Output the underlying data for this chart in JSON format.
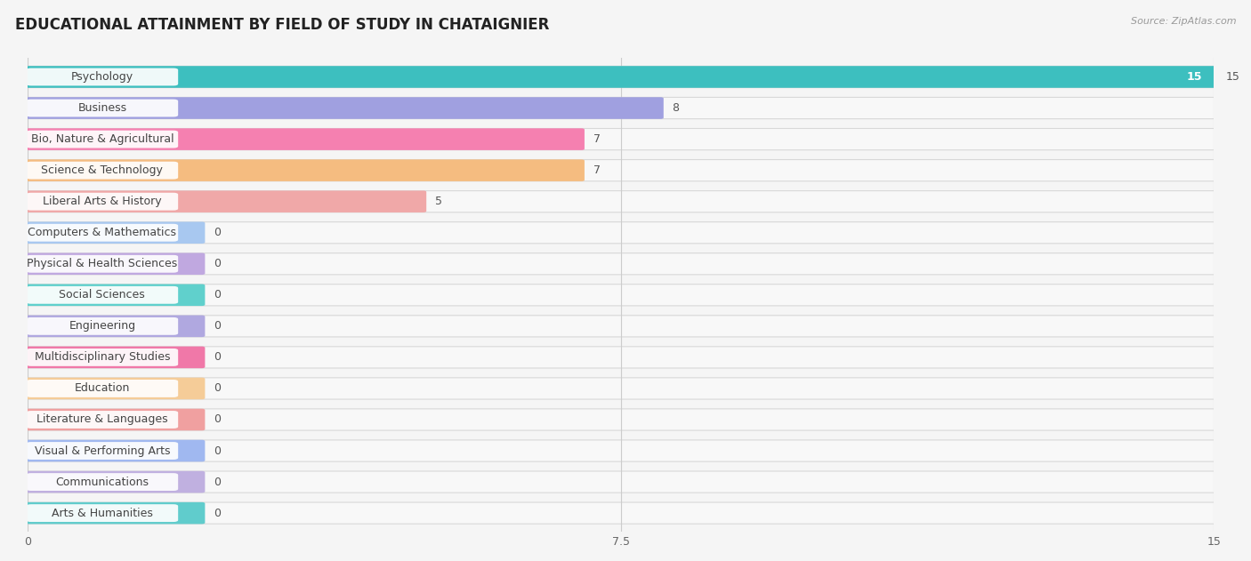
{
  "title": "EDUCATIONAL ATTAINMENT BY FIELD OF STUDY IN CHATAIGNIER",
  "source": "Source: ZipAtlas.com",
  "categories": [
    "Psychology",
    "Business",
    "Bio, Nature & Agricultural",
    "Science & Technology",
    "Liberal Arts & History",
    "Computers & Mathematics",
    "Physical & Health Sciences",
    "Social Sciences",
    "Engineering",
    "Multidisciplinary Studies",
    "Education",
    "Literature & Languages",
    "Visual & Performing Arts",
    "Communications",
    "Arts & Humanities"
  ],
  "values": [
    15,
    8,
    7,
    7,
    5,
    0,
    0,
    0,
    0,
    0,
    0,
    0,
    0,
    0,
    0
  ],
  "bar_colors": [
    "#3dbfbf",
    "#a0a0e0",
    "#f580b0",
    "#f5bc80",
    "#f0a8a8",
    "#a8c8f0",
    "#c0a8e0",
    "#60d0cc",
    "#b0a8e0",
    "#f078a8",
    "#f5cc98",
    "#f0a0a0",
    "#a0b8f0",
    "#c0b0e0",
    "#60cccc"
  ],
  "label_pill_color": "#ffffff",
  "row_bg_color": "#f0f0f0",
  "row_bg_inner": "#ffffff",
  "xlim": [
    0,
    15
  ],
  "xticks": [
    0,
    7.5,
    15
  ],
  "bg_color": "#f5f5f5",
  "title_fontsize": 12,
  "label_fontsize": 9,
  "value_fontsize": 9,
  "zero_bar_width": 2.2
}
